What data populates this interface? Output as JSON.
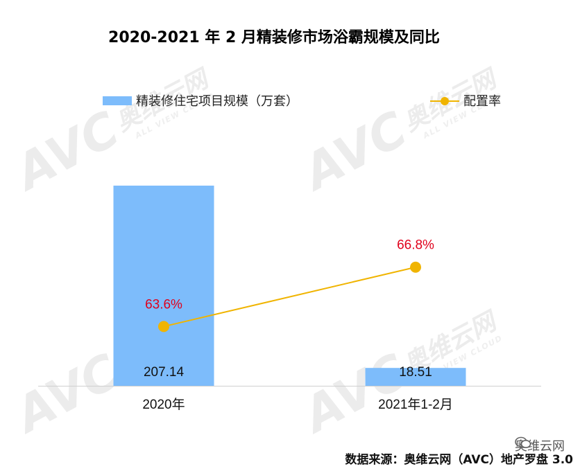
{
  "chart_data": {
    "type": "bar",
    "title": "2020-2021 年 2 月精装修市场浴霸规模及同比",
    "categories": [
      "2020年",
      "2021年1-2月"
    ],
    "series": [
      {
        "name": "精装修住宅项目规模（万套）",
        "kind": "bar",
        "values": [
          207.14,
          18.51
        ],
        "labels": [
          "207.14",
          "18.51"
        ]
      },
      {
        "name": "配置率",
        "kind": "line",
        "values": [
          63.6,
          66.8
        ],
        "labels": [
          "63.6%",
          "66.8%"
        ]
      }
    ],
    "ylim": [
      0,
      207.14
    ],
    "rate_ylim": [
      60.4,
      71.2
    ],
    "legend_position": "top",
    "grid": false
  },
  "colors": {
    "bar": "#7dbcfb",
    "line": "#f0b400",
    "rate_label": "#e0001b"
  },
  "watermark": {
    "text": "奥维云网",
    "sub": "ALL VIEW CLOUD",
    "logo": "AVC"
  },
  "wechat_tag": {
    "icon": "wechat-icon",
    "text": "奥维云网"
  },
  "source": "数据来源：奥维云网（AVC）地产罗盘 3.0"
}
